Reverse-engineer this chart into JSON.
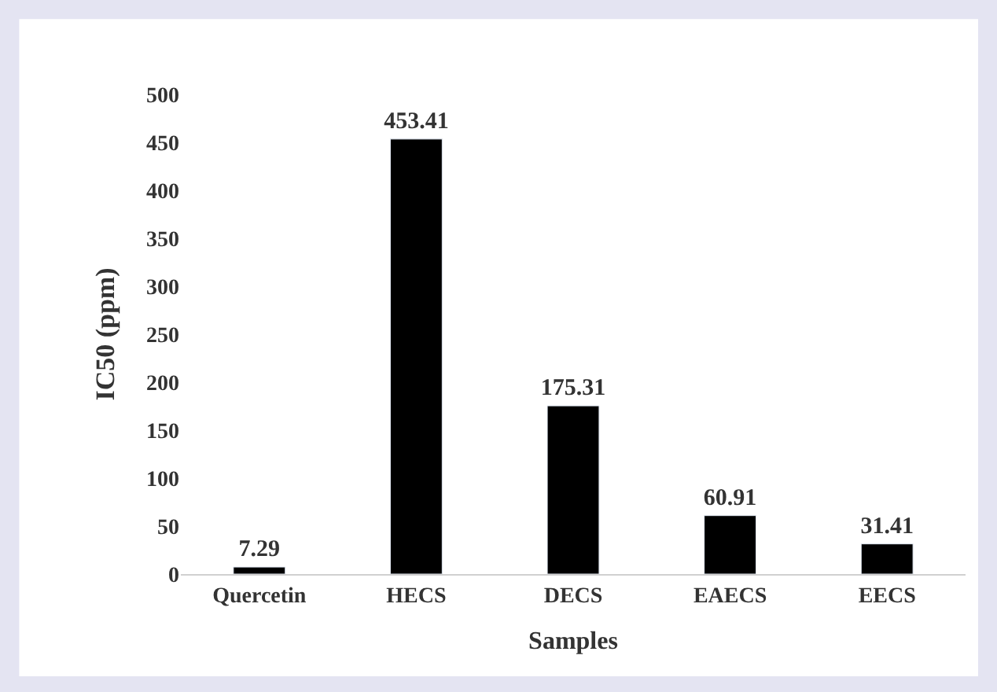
{
  "chart_data": {
    "type": "bar",
    "xlabel": "Samples",
    "ylabel": "IC50 (ppm)",
    "categories": [
      "Quercetin",
      "HECS",
      "DECS",
      "EAECS",
      "EECS"
    ],
    "values": [
      7.29,
      453.41,
      175.31,
      60.91,
      31.41
    ],
    "color": "#000000",
    "ylim": [
      0,
      500
    ],
    "yticks": [
      0,
      50,
      100,
      150,
      200,
      250,
      300,
      350,
      400,
      450,
      500
    ],
    "data_labels": true
  }
}
